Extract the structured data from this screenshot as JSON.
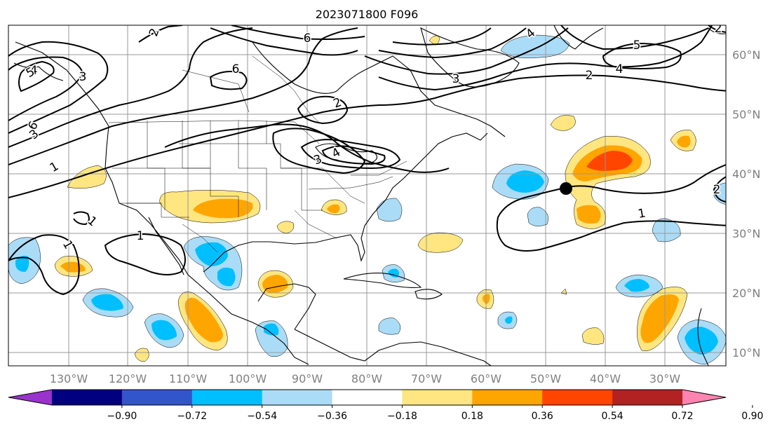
{
  "title": "2023071800 F096",
  "lon_ticks": [
    "130°W",
    "120°W",
    "110°W",
    "100°W",
    "90°W",
    "80°W",
    "70°W",
    "60°W",
    "50°W",
    "40°W",
    "30°W"
  ],
  "lat_ticks": [
    "60°N",
    "50°N",
    "40°N",
    "30°N",
    "20°N",
    "10°N"
  ],
  "colorbar": {
    "tick_labels": [
      "−0.90",
      "−0.72",
      "−0.54",
      "−0.36",
      "−0.18",
      "0.18",
      "0.36",
      "0.54",
      "0.72",
      "0.90"
    ],
    "colors": [
      "#9933cc",
      "#000080",
      "#3355cc",
      "#00bfff",
      "#aadcf7",
      "#ffffff",
      "#ffe680",
      "#ffa500",
      "#ff4500",
      "#b22222",
      "#ff85b0"
    ]
  },
  "contour_labels": [
    "1",
    "1",
    "1",
    "1",
    "1",
    "2",
    "2",
    "2",
    "2",
    "2",
    "3",
    "3",
    "3",
    "3",
    "4",
    "4",
    "4",
    "4",
    "5",
    "5",
    "6",
    "6",
    "6"
  ],
  "colors": {
    "axis": "#808080",
    "grid": "#999999",
    "contour": "#000000",
    "land": "#000000",
    "warm1": "#ffe680",
    "warm2": "#ffa500",
    "warm3": "#ff4500",
    "cool1": "#aadcf7",
    "cool2": "#00bfff"
  }
}
